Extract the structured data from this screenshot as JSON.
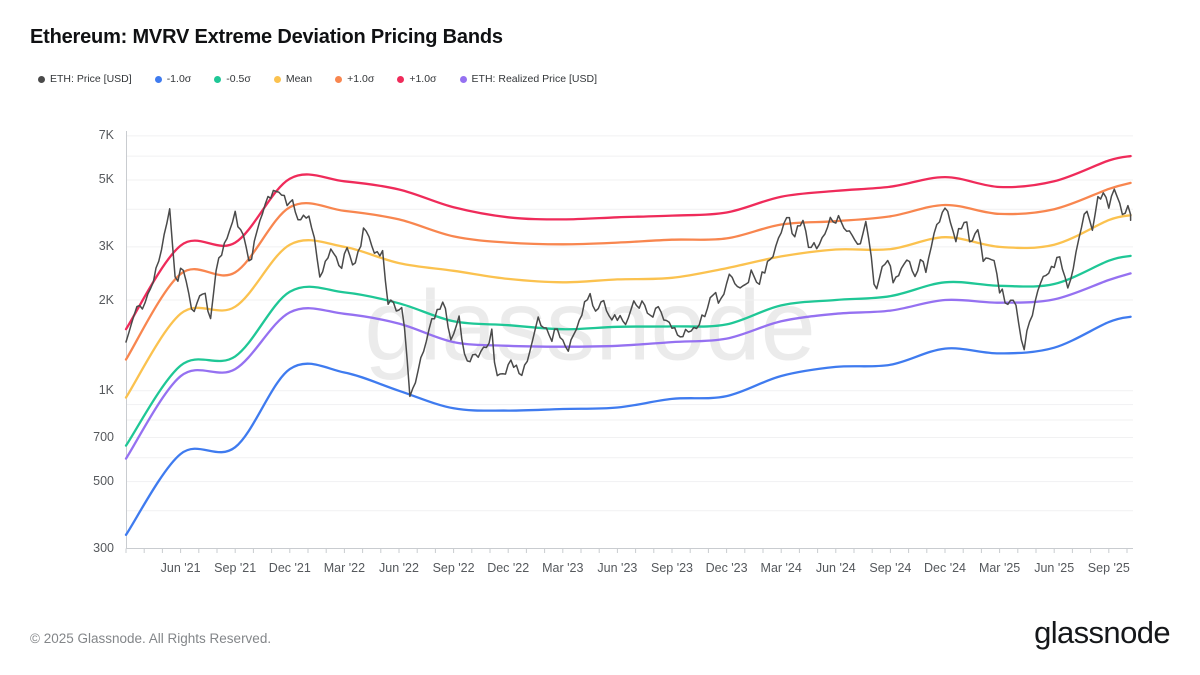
{
  "header": {
    "title": "Ethereum: MVRV Extreme Deviation Pricing Bands",
    "legend": [
      {
        "label": "ETH: Price [USD]",
        "color": "#4a4a4a"
      },
      {
        "label": "-1.0σ",
        "color": "#3f7bef"
      },
      {
        "label": "-0.5σ",
        "color": "#1fc796"
      },
      {
        "label": "Mean",
        "color": "#fbc24f"
      },
      {
        "label": "+1.0σ",
        "color": "#f8864f"
      },
      {
        "label": "+1.0σ",
        "color": "#ef2b5a"
      },
      {
        "label": "ETH: Realized Price [USD]",
        "color": "#9571f1"
      }
    ]
  },
  "watermark": "glassnode",
  "footer": {
    "copyright": "© 2025 Glassnode. All Rights Reserved.",
    "brand": "glassnode"
  },
  "chart_data": {
    "type": "line",
    "title": "Ethereum: MVRV Extreme Deviation Pricing Bands",
    "y_scale": "log",
    "y_unit": "USD",
    "ylim": [
      300,
      7000
    ],
    "x_unit": "months since 2021-03-01",
    "xlim": [
      0,
      55.2
    ],
    "grid": true,
    "legend_position": "top-left",
    "grid_color": "#f1f1f2",
    "axis_color": "#c9ccd0",
    "y_gridlines": [
      300,
      400,
      500,
      600,
      700,
      800,
      900,
      1000,
      2000,
      3000,
      4000,
      5000,
      6000,
      7000
    ],
    "y_ticks": [
      {
        "label": "7K",
        "value": 7000
      },
      {
        "label": "5K",
        "value": 5000
      },
      {
        "label": "3K",
        "value": 3000
      },
      {
        "label": "2K",
        "value": 2000
      },
      {
        "label": "1K",
        "value": 1000
      },
      {
        "label": "700",
        "value": 700
      },
      {
        "label": "500",
        "value": 500
      },
      {
        "label": "300",
        "value": 300
      }
    ],
    "x_ticks": [
      {
        "label": "Jun '21",
        "month": 3
      },
      {
        "label": "Sep '21",
        "month": 6
      },
      {
        "label": "Dec '21",
        "month": 9
      },
      {
        "label": "Mar '22",
        "month": 12
      },
      {
        "label": "Jun '22",
        "month": 15
      },
      {
        "label": "Sep '22",
        "month": 18
      },
      {
        "label": "Dec '22",
        "month": 21
      },
      {
        "label": "Mar '23",
        "month": 24
      },
      {
        "label": "Jun '23",
        "month": 27
      },
      {
        "label": "Sep '23",
        "month": 30
      },
      {
        "label": "Dec '23",
        "month": 33
      },
      {
        "label": "Mar '24",
        "month": 36
      },
      {
        "label": "Jun '24",
        "month": 39
      },
      {
        "label": "Sep '24",
        "month": 42
      },
      {
        "label": "Dec '24",
        "month": 45
      },
      {
        "label": "Mar '25",
        "month": 48
      },
      {
        "label": "Jun '25",
        "month": 51
      },
      {
        "label": "Sep '25",
        "month": 54
      }
    ],
    "bands_x": [
      0,
      3,
      6,
      9,
      12,
      15,
      18,
      21,
      24,
      27,
      30,
      33,
      36,
      39,
      42,
      45,
      48,
      51,
      54,
      55.2
    ],
    "series": [
      {
        "id": "plus1-red",
        "name": "+1.0σ",
        "color": "#ef2b5a",
        "width": 2.3,
        "style": "smooth",
        "values": [
          1600,
          3030,
          3100,
          5050,
          4950,
          4650,
          4060,
          3760,
          3700,
          3760,
          3810,
          3900,
          4400,
          4600,
          4750,
          5110,
          4740,
          4950,
          5800,
          6000
        ]
      },
      {
        "id": "plus1-orange",
        "name": "+1.0σ",
        "color": "#f8864f",
        "width": 2.3,
        "style": "smooth",
        "values": [
          1270,
          2440,
          2470,
          4060,
          3950,
          3700,
          3250,
          3100,
          3060,
          3100,
          3170,
          3200,
          3560,
          3650,
          3790,
          4130,
          3860,
          4000,
          4670,
          4890
        ]
      },
      {
        "id": "mean",
        "name": "Mean",
        "color": "#fbc24f",
        "width": 2.3,
        "style": "smooth",
        "values": [
          950,
          1800,
          1900,
          3050,
          3000,
          2650,
          2500,
          2350,
          2290,
          2340,
          2370,
          2550,
          2790,
          2940,
          2950,
          3230,
          3000,
          3050,
          3680,
          3820
        ]
      },
      {
        "id": "minus05",
        "name": "-0.5σ",
        "color": "#1fc796",
        "width": 2.3,
        "style": "smooth",
        "values": [
          658,
          1212,
          1300,
          2130,
          2120,
          1950,
          1700,
          1650,
          1600,
          1630,
          1635,
          1660,
          1920,
          2000,
          2060,
          2290,
          2230,
          2260,
          2700,
          2800
        ]
      },
      {
        "id": "realized",
        "name": "ETH: Realized Price [USD]",
        "color": "#9571f1",
        "width": 2.3,
        "style": "smooth",
        "values": [
          596,
          1118,
          1180,
          1820,
          1800,
          1670,
          1450,
          1410,
          1400,
          1410,
          1450,
          1490,
          1700,
          1800,
          1845,
          2000,
          1960,
          2010,
          2330,
          2450
        ]
      },
      {
        "id": "minus1",
        "name": "-1.0σ",
        "color": "#3f7bef",
        "width": 2.3,
        "style": "smooth",
        "values": [
          333,
          617,
          650,
          1180,
          1150,
          1000,
          875,
          860,
          870,
          880,
          940,
          960,
          1120,
          1200,
          1220,
          1380,
          1330,
          1390,
          1690,
          1760
        ]
      },
      {
        "id": "eth-price",
        "name": "ETH: Price [USD]",
        "color": "#4a4a4a",
        "width": 1.5,
        "style": "noisy",
        "jitter": {
          "seed": 11,
          "amp": 0.02,
          "step": 0.15,
          "smooth": 0.5
        },
        "x": [
          0,
          0.5,
          1,
          1.5,
          2,
          2.4,
          2.75,
          3.1,
          3.7,
          4.3,
          4.6,
          5.1,
          6,
          6.25,
          6.8,
          7.6,
          8.3,
          8.85,
          9.2,
          9.45,
          10.1,
          10.7,
          11.3,
          11.8,
          12.05,
          12.5,
          13.1,
          13.95,
          14.15,
          14.35,
          14.6,
          14.85,
          15.2,
          15.6,
          16,
          16.55,
          17.45,
          17.9,
          18.3,
          18.65,
          19.1,
          19.8,
          20.1,
          20.3,
          20.7,
          21.1,
          21.55,
          22,
          22.65,
          23,
          23.4,
          23.65,
          24.3,
          25.5,
          25.8,
          26.15,
          26.8,
          27.3,
          27.5,
          27.95,
          28.45,
          28.75,
          29.25,
          29.55,
          30.35,
          30.9,
          31.35,
          32.25,
          32.65,
          33.25,
          33.55,
          34,
          34.35,
          34.7,
          35.45,
          36.35,
          36.65,
          37.25,
          37.45,
          38,
          38.65,
          39.2,
          39.75,
          40.25,
          40.7,
          41.15,
          41.75,
          42.2,
          42.85,
          43.3,
          43.65,
          44,
          44.35,
          45.15,
          45.6,
          46.2,
          46.4,
          46.8,
          47.1,
          47.7,
          47.95,
          48.2,
          48.35,
          48.8,
          49.3,
          49.75,
          50.25,
          50.45,
          50.95,
          51.3,
          51.7,
          52,
          52.6,
          52.9,
          53.05,
          53.4,
          53.55,
          53.75,
          54,
          54.4,
          54.8,
          55,
          55.2
        ],
        "values": [
          1450,
          1800,
          1950,
          2300,
          2950,
          4170,
          2250,
          2700,
          1750,
          2150,
          1740,
          2750,
          3800,
          3400,
          2750,
          4150,
          4830,
          4050,
          4400,
          3700,
          3800,
          2400,
          3100,
          2350,
          2950,
          2550,
          3520,
          2800,
          2950,
          1950,
          2000,
          1730,
          1850,
          990,
          1070,
          1570,
          1935,
          1480,
          1750,
          1250,
          1350,
          1330,
          1630,
          1100,
          1110,
          1290,
          1180,
          1200,
          1630,
          1680,
          1480,
          1700,
          1390,
          2110,
          1830,
          2000,
          1790,
          1740,
          1630,
          1930,
          2000,
          1850,
          1870,
          1680,
          1540,
          1650,
          1530,
          2100,
          1940,
          2350,
          2200,
          2380,
          2500,
          2230,
          2800,
          4030,
          3150,
          3680,
          3050,
          2950,
          3790,
          3850,
          3350,
          2950,
          3530,
          2200,
          2770,
          2250,
          2650,
          2380,
          2700,
          2520,
          3370,
          3990,
          3350,
          3690,
          3050,
          3340,
          2600,
          2750,
          2150,
          2200,
          1870,
          2070,
          1400,
          1800,
          2350,
          2600,
          2530,
          2770,
          2250,
          2500,
          3600,
          3880,
          3400,
          4650,
          4300,
          4800,
          4300,
          4650,
          4000,
          4200,
          3850
        ]
      }
    ]
  }
}
